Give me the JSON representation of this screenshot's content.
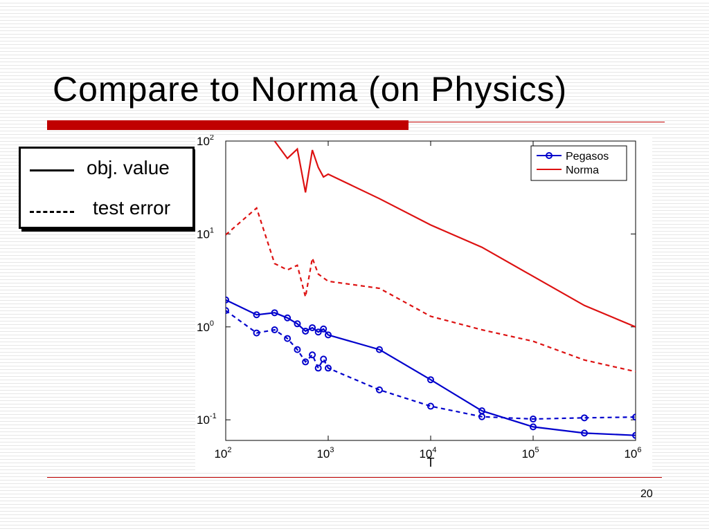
{
  "slide": {
    "title": "Compare to Norma (on Physics)",
    "page_number": "20",
    "accent_color": "#c00000"
  },
  "line_legend": {
    "solid_label": "obj. value",
    "dashed_label": "test error"
  },
  "chart_data": {
    "type": "line",
    "xscale": "log",
    "yscale": "log",
    "xlabel": "T",
    "ylabel": "",
    "xlim": [
      100,
      1000000
    ],
    "ylim": [
      0.06,
      100
    ],
    "x_ticks": [
      {
        "base": "10",
        "exp": "2",
        "value": 100
      },
      {
        "base": "10",
        "exp": "3",
        "value": 1000
      },
      {
        "base": "10",
        "exp": "4",
        "value": 10000
      },
      {
        "base": "10",
        "exp": "5",
        "value": 100000
      },
      {
        "base": "10",
        "exp": "6",
        "value": 1000000
      }
    ],
    "y_ticks": [
      {
        "base": "10",
        "exp": "2",
        "value": 100
      },
      {
        "base": "10",
        "exp": "1",
        "value": 10
      },
      {
        "base": "10",
        "exp": "0",
        "value": 1
      },
      {
        "base": "10",
        "exp": "-1",
        "value": 0.1
      }
    ],
    "legend": [
      {
        "label": "Pegasos",
        "color": "#0000cc",
        "marker": "circle"
      },
      {
        "label": "Norma",
        "color": "#dd1111",
        "marker": "none"
      }
    ],
    "legend_position": "top-right",
    "grid": false,
    "series": [
      {
        "name": "Pegasos",
        "metric": "obj. value",
        "style": "solid",
        "color": "#0000cc",
        "marker": "circle",
        "x": [
          100,
          200,
          300,
          400,
          500,
          600,
          700,
          800,
          900,
          1000,
          3162,
          10000,
          31623,
          100000,
          316228,
          1000000
        ],
        "y": [
          1.95,
          1.35,
          1.42,
          1.25,
          1.08,
          0.9,
          0.98,
          0.88,
          0.95,
          0.82,
          0.57,
          0.27,
          0.125,
          0.084,
          0.072,
          0.068
        ]
      },
      {
        "name": "Pegasos",
        "metric": "test error",
        "style": "dashed",
        "color": "#0000cc",
        "marker": "circle",
        "x": [
          100,
          200,
          300,
          400,
          500,
          600,
          700,
          800,
          900,
          1000,
          3162,
          10000,
          31623,
          100000,
          316228,
          1000000
        ],
        "y": [
          1.5,
          0.86,
          0.93,
          0.75,
          0.57,
          0.42,
          0.5,
          0.36,
          0.45,
          0.36,
          0.21,
          0.14,
          0.108,
          0.102,
          0.105,
          0.107
        ]
      },
      {
        "name": "Norma",
        "metric": "obj. value",
        "style": "solid",
        "color": "#dd1111",
        "marker": "none",
        "x": [
          300,
          400,
          500,
          600,
          700,
          800,
          900,
          1000,
          3162,
          10000,
          31623,
          100000,
          316228,
          1000000
        ],
        "y": [
          100,
          65,
          82,
          28,
          80,
          52,
          41,
          44,
          24,
          12.5,
          7.2,
          3.5,
          1.7,
          1.0
        ]
      },
      {
        "name": "Norma",
        "metric": "test error",
        "style": "dashed",
        "color": "#dd1111",
        "marker": "none",
        "x": [
          100,
          200,
          300,
          400,
          500,
          600,
          700,
          800,
          1000,
          3162,
          10000,
          31623,
          100000,
          316228,
          1000000
        ],
        "y": [
          9.8,
          19,
          4.8,
          4.1,
          4.6,
          2.1,
          5.5,
          3.7,
          3.1,
          2.6,
          1.3,
          0.93,
          0.7,
          0.44,
          0.33
        ]
      }
    ]
  }
}
